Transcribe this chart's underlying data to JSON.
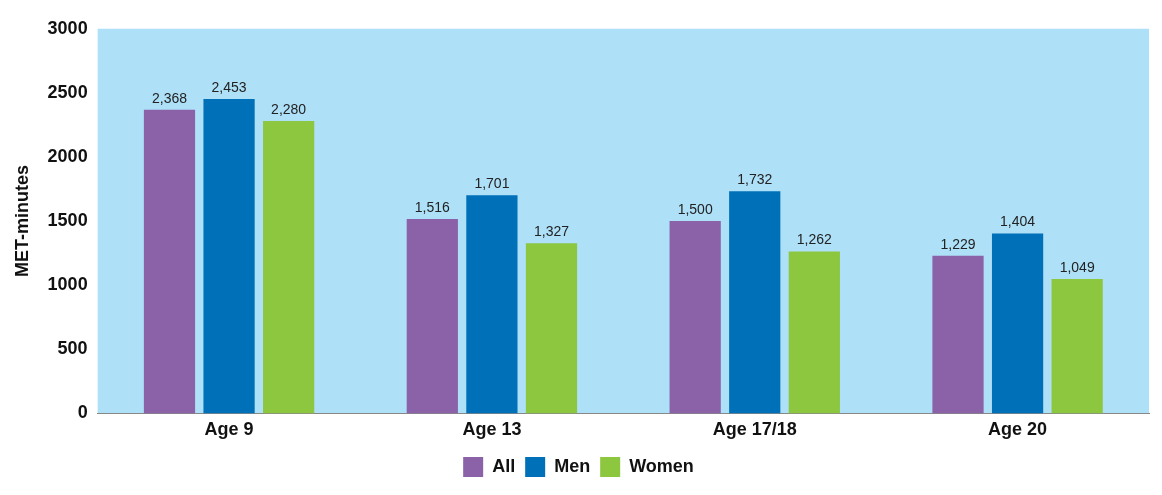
{
  "chart_data": {
    "type": "bar",
    "ylabel": "MET-minutes",
    "categories": [
      "Age 9",
      "Age 13",
      "Age 17/18",
      "Age 20"
    ],
    "series": [
      {
        "name": "All",
        "color": "#8b62a8",
        "values": [
          2368,
          1516,
          1500,
          1229
        ],
        "value_labels": [
          "2,368",
          "1,516",
          "1,500",
          "1,229"
        ]
      },
      {
        "name": "Men",
        "color": "#0070b8",
        "values": [
          2453,
          1701,
          1732,
          1404
        ],
        "value_labels": [
          "2,453",
          "1,701",
          "1,732",
          "1,404"
        ]
      },
      {
        "name": "Women",
        "color": "#8dc63f",
        "values": [
          2280,
          1327,
          1262,
          1049
        ],
        "value_labels": [
          "2,280",
          "1,327",
          "1,262",
          "1,049"
        ]
      }
    ],
    "ylim": [
      0,
      3000
    ],
    "yticks": [
      0,
      500,
      1000,
      1500,
      2000,
      2500,
      3000
    ],
    "grid": false,
    "legend": "bottom"
  }
}
